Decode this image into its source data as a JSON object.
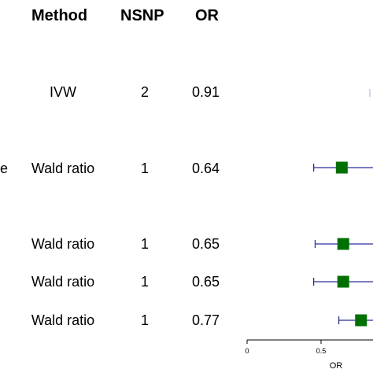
{
  "headers": {
    "method": "Method",
    "nsnp": "NSNP",
    "or": "OR"
  },
  "rows": [
    {
      "method": "IVW",
      "nsnp": "2",
      "or": "0.91",
      "left_fragment": ""
    },
    {
      "method": "Wald ratio",
      "nsnp": "1",
      "or": "0.64",
      "left_fragment": "e"
    },
    {
      "method": "Wald ratio",
      "nsnp": "1",
      "or": "0.65",
      "left_fragment": ""
    },
    {
      "method": "Wald ratio",
      "nsnp": "1",
      "or": "0.65",
      "left_fragment": ""
    },
    {
      "method": "Wald ratio",
      "nsnp": "1",
      "or": "0.77",
      "left_fragment": ""
    }
  ],
  "colors": {
    "marker": "#007000",
    "ci": "#2b2f9e",
    "axis": "#000000",
    "faint_ci": "#c8c8e0"
  },
  "chart_data": {
    "type": "forest",
    "xlabel": "OR",
    "x_ticks": [
      0,
      0.5
    ],
    "x_tick_labels": [
      "0",
      "0.5"
    ],
    "xlim": [
      0,
      1.0
    ],
    "points": [
      {
        "estimate": 0.91,
        "lower": null,
        "upper": null,
        "marker": false
      },
      {
        "estimate": 0.64,
        "lower": 0.45,
        "upper": 0.92
      },
      {
        "estimate": 0.65,
        "lower": 0.46,
        "upper": 0.92
      },
      {
        "estimate": 0.65,
        "lower": 0.45,
        "upper": 0.93
      },
      {
        "estimate": 0.77,
        "lower": 0.62,
        "upper": 0.96
      }
    ]
  }
}
